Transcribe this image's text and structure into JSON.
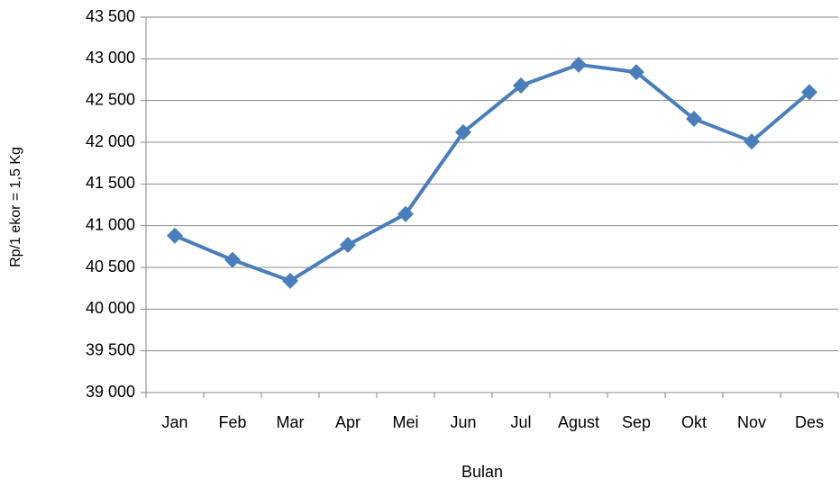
{
  "chart_data": {
    "type": "line",
    "x_label": "Bulan",
    "y_label": "Rp/1 ekor = 1,5 Kg",
    "categories": [
      "Jan",
      "Feb",
      "Mar",
      "Apr",
      "Mei",
      "Jun",
      "Jul",
      "Agust",
      "Sep",
      "Okt",
      "Nov",
      "Des"
    ],
    "series": [
      {
        "color": "#4a7ebb",
        "values": [
          40880,
          40590,
          40340,
          40770,
          41140,
          42120,
          42680,
          42930,
          42840,
          42280,
          42010,
          42600
        ]
      }
    ],
    "ylim": [
      39000,
      43500
    ],
    "yticks": [
      {
        "value": 39000,
        "label": "39 000"
      },
      {
        "value": 39500,
        "label": "39 500"
      },
      {
        "value": 40000,
        "label": "40 000"
      },
      {
        "value": 40500,
        "label": "40 500"
      },
      {
        "value": 41000,
        "label": "41 000"
      },
      {
        "value": 41500,
        "label": "41 500"
      },
      {
        "value": 42000,
        "label": "42 000"
      },
      {
        "value": 42500,
        "label": "42 500"
      },
      {
        "value": 43000,
        "label": "43 000"
      },
      {
        "value": 43500,
        "label": "43 500"
      }
    ],
    "grid": true
  }
}
